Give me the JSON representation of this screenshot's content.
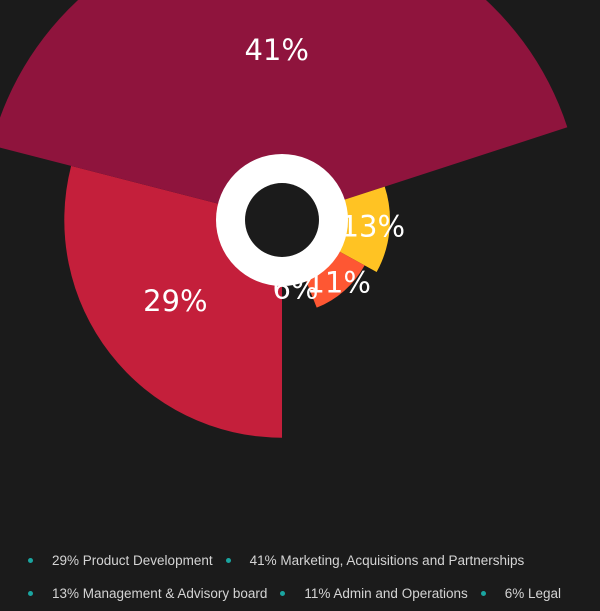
{
  "chart_data": {
    "type": "pie",
    "variant": "polar-area",
    "start_angle_deg": 0,
    "slices": [
      {
        "label": "29%",
        "value": 29,
        "color": "#c41f3b",
        "legend": "29% Product Development"
      },
      {
        "label": "41%",
        "value": 41,
        "color": "#8f143d",
        "legend": "41% Marketing, Acquisitions and Partnerships"
      },
      {
        "label": "13%",
        "value": 13,
        "color": "#ffc323",
        "legend": "13% Management & Advisory board"
      },
      {
        "label": "11%",
        "value": 11,
        "color": "#fe5733",
        "legend": "11% Admin and Operations"
      },
      {
        "label": "6%",
        "value": 6,
        "color": "#581845",
        "legend": "6% Legal"
      }
    ],
    "center_hole": {
      "ring_color": "#ffffff",
      "inner_color": "#1b1b1b"
    },
    "legend_position": "bottom",
    "legend_marker_color": "#1aa5a0",
    "background": "#1b1b1b"
  }
}
